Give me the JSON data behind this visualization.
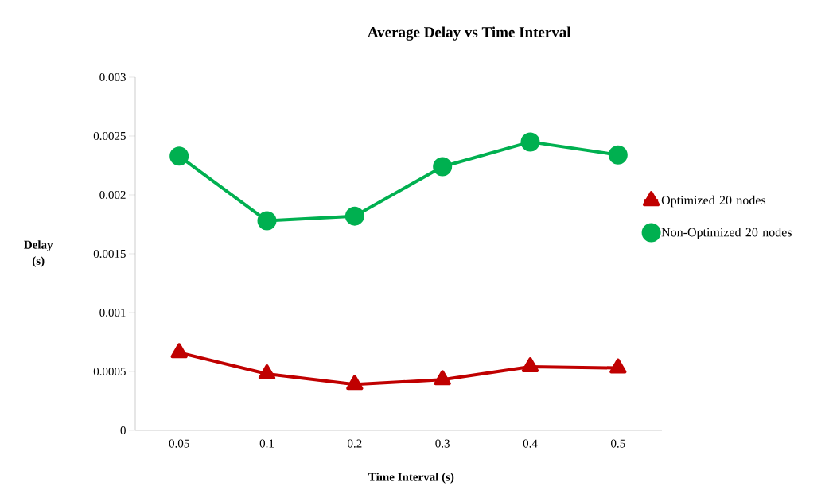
{
  "chart_data": {
    "type": "line",
    "title": "Average Delay vs Time Interval",
    "xlabel": "Time Interval (s)",
    "ylabel": "Delay (s)",
    "categories": [
      "0.05",
      "0.1",
      "0.2",
      "0.3",
      "0.4",
      "0.5"
    ],
    "series": [
      {
        "name": "Optimized 20 nodes",
        "color": "#c00000",
        "marker": "triangle",
        "values": [
          0.00066,
          0.00048,
          0.00039,
          0.00043,
          0.00054,
          0.00053
        ]
      },
      {
        "name": "Non-Optimized 20 nodes",
        "color": "#00b050",
        "marker": "circle",
        "values": [
          0.00233,
          0.00178,
          0.00182,
          0.00224,
          0.00245,
          0.00234
        ]
      }
    ],
    "ylim": [
      0,
      0.003
    ],
    "yticks": [
      0,
      0.0005,
      0.001,
      0.0015,
      0.002,
      0.0025,
      0.003
    ],
    "legend": "right",
    "grid": false,
    "line_style": "solid"
  }
}
